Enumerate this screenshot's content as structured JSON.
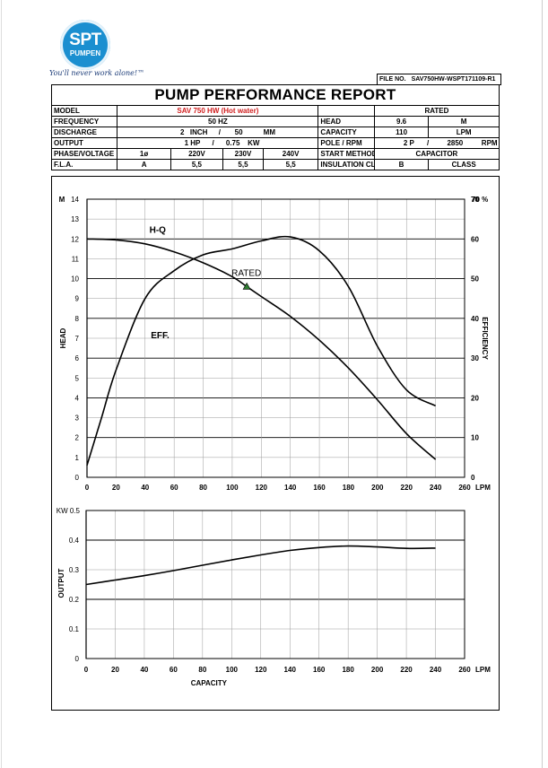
{
  "logo": {
    "brand": "SPT",
    "sub": "PUMPEN",
    "slogan": "You'll never work alone!™"
  },
  "file_no": {
    "label": "FILE NO.",
    "value": "SAV750HW-WSPT171109-R1"
  },
  "title": "PUMP PERFORMANCE REPORT",
  "spec": {
    "model_label": "MODEL",
    "model_value": "SAV 750 HW (Hot water)",
    "rated_label": "RATED",
    "frequency_label": "FREQUENCY",
    "frequency_value": "50 HZ",
    "head_label": "HEAD",
    "head_value": "9.6",
    "head_unit": "M",
    "discharge_label": "DISCHARGE",
    "discharge_a": "2",
    "discharge_a_unit": "INCH",
    "discharge_sep": "/",
    "discharge_b": "50",
    "discharge_b_unit": "MM",
    "capacity_label": "CAPACITY",
    "capacity_value": "110",
    "capacity_unit": "LPM",
    "output_label": "OUTPUT",
    "output_a": "1 HP",
    "output_sep": "/",
    "output_b": "0.75",
    "output_b_unit": "KW",
    "pole_label": "POLE / RPM",
    "pole_value": "2 P",
    "pole_sep": "/",
    "rpm_value": "2850",
    "rpm_unit": "RPM",
    "phase_label": "PHASE/VOLTAGE",
    "phase_value": "1ø",
    "v1": "220V",
    "v2": "230V",
    "v3": "240V",
    "start_label": "START METHOD",
    "start_value": "CAPACITOR",
    "fla_label": "F.L.A.",
    "fla_unit": "A",
    "fla1": "5,5",
    "fla2": "5,5",
    "fla3": "5,5",
    "insulation_label": "INSULATION CLASS",
    "insulation_value": "B",
    "insulation_unit": "CLASS"
  },
  "chart_data": [
    {
      "type": "line",
      "xlabel": "LPM",
      "ylabel": "HEAD",
      "y_unit": "M",
      "y2label": "EFFICIENCY",
      "y2_unit": "%",
      "xlim": [
        0,
        260
      ],
      "ylim": [
        0,
        14
      ],
      "y2lim": [
        0,
        70
      ],
      "x_ticks": [
        0,
        20,
        40,
        60,
        80,
        100,
        120,
        140,
        160,
        180,
        200,
        220,
        240,
        260
      ],
      "y_ticks": [
        0,
        1,
        2,
        3,
        4,
        5,
        6,
        7,
        8,
        9,
        10,
        11,
        12,
        13,
        14
      ],
      "y2_ticks": [
        0,
        10,
        20,
        30,
        40,
        50,
        60,
        70
      ],
      "grid": true,
      "series": [
        {
          "name": "H-Q",
          "axis": "left",
          "x": [
            0,
            20,
            40,
            60,
            80,
            100,
            110,
            120,
            140,
            160,
            180,
            200,
            220,
            240
          ],
          "y": [
            12.0,
            11.95,
            11.75,
            11.35,
            10.8,
            10.1,
            9.6,
            9.1,
            8.1,
            6.9,
            5.5,
            3.9,
            2.2,
            0.9
          ]
        },
        {
          "name": "EFF.",
          "axis": "right",
          "x": [
            0,
            10,
            20,
            40,
            60,
            80,
            100,
            120,
            140,
            160,
            180,
            200,
            220,
            240
          ],
          "y": [
            3,
            15,
            27,
            45,
            52,
            56,
            57.5,
            59.5,
            60.5,
            57,
            48,
            33,
            22,
            18
          ]
        }
      ],
      "rated_point": {
        "label": "RATED",
        "x": 110,
        "y": 9.6
      }
    },
    {
      "type": "line",
      "xlabel": "LPM",
      "caption": "CAPACITY",
      "ylabel": "OUTPUT",
      "y_unit": "KW",
      "xlim": [
        0,
        260
      ],
      "ylim": [
        0,
        0.5
      ],
      "x_ticks": [
        0,
        20,
        40,
        60,
        80,
        100,
        120,
        140,
        160,
        180,
        200,
        220,
        240,
        260
      ],
      "y_ticks": [
        "0",
        "0.1",
        "0.2",
        "0.3",
        "0.4",
        "0.5"
      ],
      "grid": true,
      "series": [
        {
          "name": "",
          "x": [
            0,
            20,
            40,
            60,
            80,
            100,
            120,
            140,
            160,
            180,
            200,
            220,
            240
          ],
          "y": [
            0.25,
            0.265,
            0.28,
            0.297,
            0.315,
            0.333,
            0.35,
            0.365,
            0.375,
            0.38,
            0.377,
            0.372,
            0.373
          ]
        }
      ]
    }
  ]
}
